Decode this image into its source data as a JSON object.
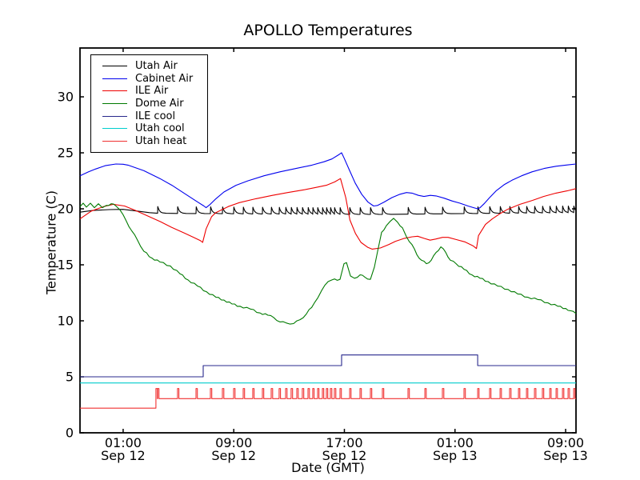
{
  "chart_data": {
    "type": "line",
    "title": "APOLLO Temperatures",
    "xlabel": "Date (GMT)",
    "ylabel": "Temperature (C)",
    "x_unit": "hours since Sep 12 00:00 GMT",
    "xlim": [
      -2.12,
      33.75
    ],
    "ylim": [
      0,
      34.36
    ],
    "grid": false,
    "legend_position": "upper left",
    "yticks": [
      0,
      5,
      10,
      15,
      20,
      25,
      30
    ],
    "xticks": [
      {
        "t": 1,
        "line1": "01:00",
        "line2": "Sep 12"
      },
      {
        "t": 9,
        "line1": "09:00",
        "line2": "Sep 12"
      },
      {
        "t": 17,
        "line1": "17:00",
        "line2": "Sep 12"
      },
      {
        "t": 25,
        "line1": "01:00",
        "line2": "Sep 13"
      },
      {
        "t": 33,
        "line1": "09:00",
        "line2": "Sep 13"
      }
    ],
    "series": [
      {
        "name": "Utah Air",
        "color": "#000000",
        "type": "sawtooth",
        "amp": 0.6,
        "tau": 0.13,
        "pre_points": [
          [
            -2.12,
            19.7
          ],
          [
            -1.2,
            19.85
          ],
          [
            0.0,
            19.93
          ],
          [
            1.0,
            19.95
          ],
          [
            2.0,
            19.8
          ],
          [
            2.9,
            19.66
          ],
          [
            3.49,
            19.6
          ]
        ],
        "base_points": [
          [
            3.49,
            19.6
          ],
          [
            10,
            19.55
          ],
          [
            16,
            19.5
          ],
          [
            20,
            19.5
          ],
          [
            24,
            19.55
          ],
          [
            28,
            19.6
          ],
          [
            33.75,
            19.65
          ]
        ],
        "spike_times": [
          3.49,
          4.93,
          6.27,
          7.31,
          8.18,
          8.99,
          9.68,
          10.37,
          11.07,
          11.71,
          12.28,
          12.75,
          13.15,
          13.56,
          13.96,
          14.37,
          14.71,
          15.06,
          15.41,
          15.7,
          15.99,
          16.28,
          16.68,
          17.38,
          18.13,
          18.88,
          19.75,
          21.6,
          22.82,
          24.09,
          25.65,
          26.64,
          27.5,
          28.26,
          28.95,
          29.59,
          30.17,
          30.75,
          31.32,
          31.85,
          32.31,
          32.77,
          33.18,
          33.58
        ]
      },
      {
        "name": "Cabinet Air",
        "color": "#0000ee",
        "type": "line",
        "points": [
          [
            -2.12,
            22.95
          ],
          [
            -1.5,
            23.3
          ],
          [
            -1.0,
            23.55
          ],
          [
            -0.3,
            23.85
          ],
          [
            0.48,
            24.0
          ],
          [
            1.0,
            23.98
          ],
          [
            1.35,
            23.9
          ],
          [
            2.5,
            23.4
          ],
          [
            3.66,
            22.7
          ],
          [
            4.53,
            22.1
          ],
          [
            5.4,
            21.4
          ],
          [
            6.27,
            20.7
          ],
          [
            6.84,
            20.25
          ],
          [
            7.0,
            20.1
          ],
          [
            7.25,
            20.35
          ],
          [
            7.71,
            20.9
          ],
          [
            8.29,
            21.5
          ],
          [
            9.16,
            22.1
          ],
          [
            10.03,
            22.5
          ],
          [
            11.19,
            22.95
          ],
          [
            12.34,
            23.3
          ],
          [
            13.5,
            23.6
          ],
          [
            14.66,
            23.9
          ],
          [
            15.53,
            24.2
          ],
          [
            16.1,
            24.45
          ],
          [
            16.62,
            24.85
          ],
          [
            16.8,
            25.0
          ],
          [
            16.97,
            24.55
          ],
          [
            17.38,
            23.4
          ],
          [
            17.78,
            22.3
          ],
          [
            18.25,
            21.3
          ],
          [
            18.71,
            20.6
          ],
          [
            19.11,
            20.25
          ],
          [
            19.4,
            20.3
          ],
          [
            19.87,
            20.6
          ],
          [
            20.44,
            21.0
          ],
          [
            21.02,
            21.3
          ],
          [
            21.49,
            21.45
          ],
          [
            21.89,
            21.4
          ],
          [
            22.35,
            21.2
          ],
          [
            22.76,
            21.1
          ],
          [
            23.22,
            21.2
          ],
          [
            23.63,
            21.15
          ],
          [
            24.21,
            20.95
          ],
          [
            24.78,
            20.7
          ],
          [
            25.36,
            20.5
          ],
          [
            25.94,
            20.25
          ],
          [
            26.35,
            20.1
          ],
          [
            26.64,
            20.0
          ],
          [
            26.81,
            20.1
          ],
          [
            27.1,
            20.45
          ],
          [
            27.5,
            21.0
          ],
          [
            27.97,
            21.6
          ],
          [
            28.55,
            22.15
          ],
          [
            29.12,
            22.55
          ],
          [
            29.82,
            22.95
          ],
          [
            30.57,
            23.3
          ],
          [
            31.44,
            23.6
          ],
          [
            32.31,
            23.8
          ],
          [
            33.18,
            23.92
          ],
          [
            33.75,
            24.0
          ]
        ]
      },
      {
        "name": "ILE Air",
        "color": "#ee0000",
        "type": "line",
        "points": [
          [
            -2.12,
            19.1
          ],
          [
            -1.3,
            19.8
          ],
          [
            -0.4,
            20.2
          ],
          [
            0.3,
            20.4
          ],
          [
            1.1,
            20.25
          ],
          [
            1.9,
            19.85
          ],
          [
            2.8,
            19.35
          ],
          [
            3.7,
            18.85
          ],
          [
            4.5,
            18.35
          ],
          [
            5.4,
            17.85
          ],
          [
            6.1,
            17.45
          ],
          [
            6.6,
            17.15
          ],
          [
            6.75,
            17.0
          ],
          [
            7.0,
            18.2
          ],
          [
            7.4,
            19.3
          ],
          [
            7.7,
            19.65
          ],
          [
            8.6,
            20.2
          ],
          [
            9.4,
            20.55
          ],
          [
            10.6,
            20.9
          ],
          [
            11.8,
            21.2
          ],
          [
            12.9,
            21.45
          ],
          [
            14.1,
            21.7
          ],
          [
            14.9,
            21.9
          ],
          [
            15.7,
            22.1
          ],
          [
            16.3,
            22.4
          ],
          [
            16.72,
            22.7
          ],
          [
            17.1,
            21.0
          ],
          [
            17.4,
            19.0
          ],
          [
            17.8,
            17.8
          ],
          [
            18.2,
            17.0
          ],
          [
            18.7,
            16.55
          ],
          [
            19.0,
            16.4
          ],
          [
            19.6,
            16.5
          ],
          [
            20.2,
            16.8
          ],
          [
            20.7,
            17.1
          ],
          [
            21.3,
            17.35
          ],
          [
            21.9,
            17.5
          ],
          [
            22.3,
            17.55
          ],
          [
            22.8,
            17.35
          ],
          [
            23.2,
            17.2
          ],
          [
            23.6,
            17.3
          ],
          [
            24.1,
            17.45
          ],
          [
            24.5,
            17.45
          ],
          [
            25.1,
            17.25
          ],
          [
            25.7,
            17.05
          ],
          [
            26.3,
            16.7
          ],
          [
            26.55,
            16.45
          ],
          [
            26.7,
            17.6
          ],
          [
            27.2,
            18.6
          ],
          [
            27.7,
            19.1
          ],
          [
            28.3,
            19.6
          ],
          [
            28.8,
            19.95
          ],
          [
            29.7,
            20.4
          ],
          [
            30.6,
            20.75
          ],
          [
            31.4,
            21.1
          ],
          [
            32.3,
            21.4
          ],
          [
            33.1,
            21.6
          ],
          [
            33.75,
            21.8
          ]
        ]
      },
      {
        "name": "Dome Air",
        "color": "#007a00",
        "type": "line",
        "jitter": 0.07,
        "points": [
          [
            -2.12,
            20.2
          ],
          [
            -1.89,
            20.5
          ],
          [
            -1.66,
            20.15
          ],
          [
            -1.37,
            20.5
          ],
          [
            -1.08,
            20.1
          ],
          [
            -0.79,
            20.45
          ],
          [
            -0.5,
            20.1
          ],
          [
            -0.22,
            20.3
          ],
          [
            0.13,
            20.45
          ],
          [
            0.48,
            20.25
          ],
          [
            0.77,
            19.9
          ],
          [
            1.23,
            18.9
          ],
          [
            1.64,
            18.0
          ],
          [
            2.04,
            17.2
          ],
          [
            2.5,
            16.2
          ],
          [
            3.08,
            15.6
          ],
          [
            3.66,
            15.25
          ],
          [
            4.41,
            14.9
          ],
          [
            5.11,
            14.2
          ],
          [
            5.69,
            13.65
          ],
          [
            6.38,
            13.1
          ],
          [
            7.02,
            12.6
          ],
          [
            7.71,
            12.1
          ],
          [
            8.29,
            11.85
          ],
          [
            8.87,
            11.5
          ],
          [
            9.45,
            11.3
          ],
          [
            10.2,
            11.05
          ],
          [
            10.9,
            10.7
          ],
          [
            11.47,
            10.5
          ],
          [
            11.88,
            10.3
          ],
          [
            12.34,
            9.9
          ],
          [
            12.81,
            9.8
          ],
          [
            13.33,
            9.75
          ],
          [
            13.79,
            10.1
          ],
          [
            14.25,
            10.6
          ],
          [
            14.83,
            11.6
          ],
          [
            15.35,
            12.7
          ],
          [
            15.82,
            13.5
          ],
          [
            16.1,
            13.65
          ],
          [
            16.68,
            13.7
          ],
          [
            16.97,
            15.1
          ],
          [
            17.15,
            15.2
          ],
          [
            17.44,
            14.0
          ],
          [
            17.73,
            13.8
          ],
          [
            18.13,
            14.1
          ],
          [
            18.48,
            13.9
          ],
          [
            18.88,
            13.7
          ],
          [
            19.17,
            14.8
          ],
          [
            19.4,
            16.2
          ],
          [
            19.69,
            17.9
          ],
          [
            20.04,
            18.5
          ],
          [
            20.33,
            18.9
          ],
          [
            20.56,
            19.15
          ],
          [
            20.85,
            18.8
          ],
          [
            21.2,
            18.3
          ],
          [
            21.49,
            17.5
          ],
          [
            21.89,
            16.8
          ],
          [
            22.24,
            15.9
          ],
          [
            22.59,
            15.4
          ],
          [
            22.93,
            15.1
          ],
          [
            23.28,
            15.4
          ],
          [
            23.63,
            16.1
          ],
          [
            23.98,
            16.6
          ],
          [
            24.33,
            16.1
          ],
          [
            24.67,
            15.4
          ],
          [
            25.08,
            15.1
          ],
          [
            25.65,
            14.6
          ],
          [
            26.23,
            14.1
          ],
          [
            26.81,
            13.8
          ],
          [
            27.39,
            13.5
          ],
          [
            28.08,
            13.1
          ],
          [
            28.84,
            12.8
          ],
          [
            29.53,
            12.4
          ],
          [
            30.28,
            12.1
          ],
          [
            30.98,
            11.9
          ],
          [
            31.73,
            11.6
          ],
          [
            32.43,
            11.3
          ],
          [
            33.01,
            11.1
          ],
          [
            33.35,
            10.9
          ],
          [
            33.75,
            10.65
          ]
        ]
      },
      {
        "name": "ILE cool",
        "color": "#28288c",
        "type": "line",
        "points": [
          [
            -2.12,
            5.0
          ],
          [
            6.79,
            5.0
          ],
          [
            6.79,
            6.0
          ],
          [
            16.8,
            6.0
          ],
          [
            16.8,
            6.95
          ],
          [
            26.64,
            6.95
          ],
          [
            26.64,
            6.0
          ],
          [
            33.75,
            6.0
          ]
        ]
      },
      {
        "name": "Utah cool",
        "color": "#00cdcd",
        "type": "line",
        "points": [
          [
            -2.12,
            4.45
          ],
          [
            33.75,
            4.45
          ]
        ]
      },
      {
        "name": "Utah heat",
        "color": "#f03030",
        "type": "pulse",
        "level_before": 2.2,
        "step_t": 3.37,
        "base": 3.05,
        "peak": 3.95,
        "width": 0.1,
        "spike_times": [
          3.49,
          4.93,
          6.27,
          7.31,
          8.18,
          8.99,
          9.68,
          10.37,
          11.07,
          11.71,
          12.28,
          12.75,
          13.15,
          13.56,
          13.96,
          14.37,
          14.71,
          15.06,
          15.41,
          15.7,
          15.99,
          16.28,
          16.68,
          17.38,
          18.13,
          18.88,
          19.75,
          21.6,
          22.82,
          24.09,
          25.65,
          26.64,
          27.5,
          28.26,
          28.95,
          29.59,
          30.17,
          30.75,
          31.32,
          31.85,
          32.31,
          32.77,
          33.18,
          33.58
        ]
      }
    ]
  }
}
